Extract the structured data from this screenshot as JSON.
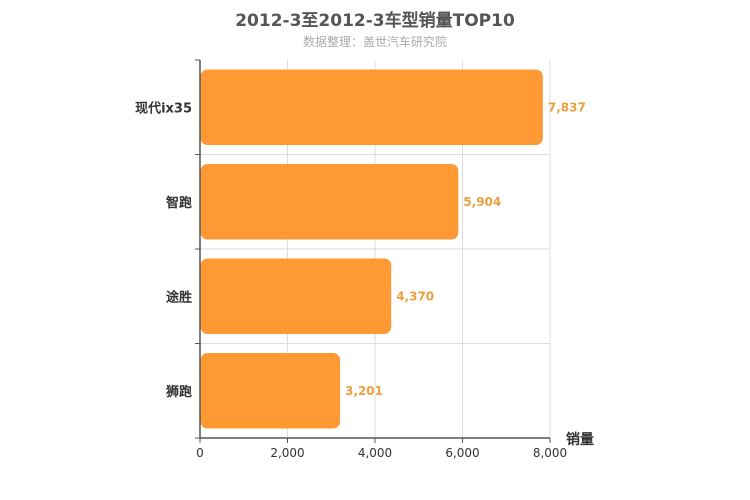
{
  "chart_data": {
    "type": "bar",
    "orientation": "horizontal",
    "title": "2012-3至2012-3车型销量TOP10",
    "subtitle": "数据整理：盖世汽车研究院",
    "xlabel": "销量",
    "ylabel": "",
    "categories": [
      "现代ix35",
      "智跑",
      "途胜",
      "狮跑"
    ],
    "values": [
      7837,
      5904,
      4370,
      3201
    ],
    "value_labels": [
      "7,837",
      "5,904",
      "4,370",
      "3,201"
    ],
    "xlim": [
      0,
      8000
    ],
    "x_ticks": [
      0,
      2000,
      4000,
      6000,
      8000
    ],
    "x_tick_labels": [
      "0",
      "2,000",
      "4,000",
      "6,000",
      "8,000"
    ],
    "grid": true,
    "bar_color": "#ff9933",
    "label_color": "#e8a040"
  }
}
